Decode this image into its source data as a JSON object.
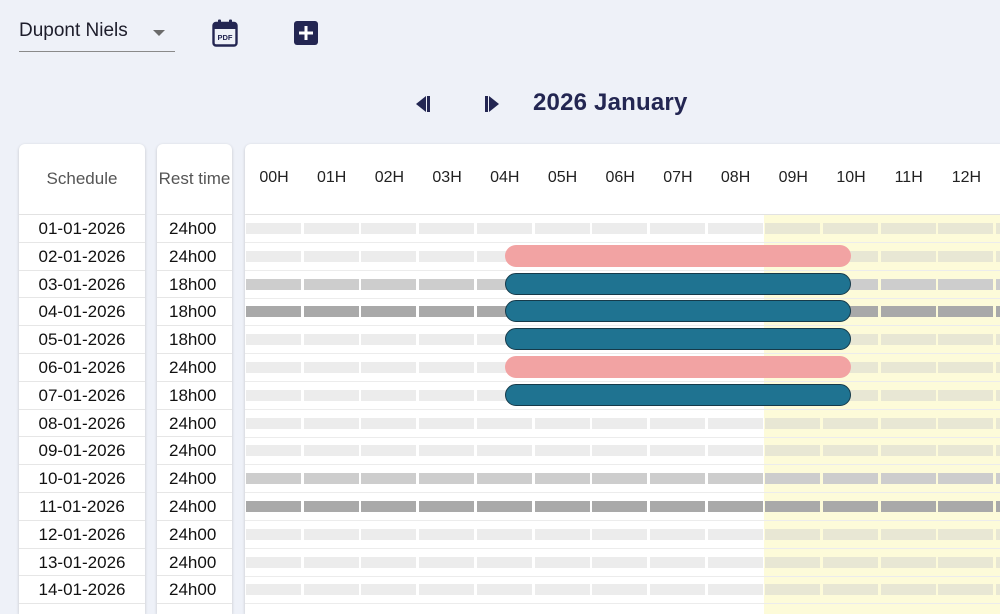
{
  "toolbar": {
    "employee": "Dupont Niels",
    "pdf_icon_text": "PDF"
  },
  "nav": {
    "month_title": "2026 January"
  },
  "columns": {
    "schedule_header": "Schedule",
    "rest_header": "Rest time"
  },
  "hours": [
    "00H",
    "01H",
    "02H",
    "03H",
    "04H",
    "05H",
    "06H",
    "07H",
    "08H",
    "09H",
    "10H",
    "11H",
    "12H"
  ],
  "rows": [
    {
      "date": "01-01-2026",
      "rest": "24h00",
      "shade": "light",
      "shift": null
    },
    {
      "date": "02-01-2026",
      "rest": "24h00",
      "shade": "light",
      "shift": "pink"
    },
    {
      "date": "03-01-2026",
      "rest": "18h00",
      "shade": "mid",
      "shift": "teal"
    },
    {
      "date": "04-01-2026",
      "rest": "18h00",
      "shade": "dark",
      "shift": "teal"
    },
    {
      "date": "05-01-2026",
      "rest": "18h00",
      "shade": "light",
      "shift": "teal"
    },
    {
      "date": "06-01-2026",
      "rest": "24h00",
      "shade": "light",
      "shift": "pink"
    },
    {
      "date": "07-01-2026",
      "rest": "18h00",
      "shade": "light",
      "shift": "teal"
    },
    {
      "date": "08-01-2026",
      "rest": "24h00",
      "shade": "light",
      "shift": null
    },
    {
      "date": "09-01-2026",
      "rest": "24h00",
      "shade": "light",
      "shift": null
    },
    {
      "date": "10-01-2026",
      "rest": "24h00",
      "shade": "mid",
      "shift": null
    },
    {
      "date": "11-01-2026",
      "rest": "24h00",
      "shade": "dark",
      "shift": null
    },
    {
      "date": "12-01-2026",
      "rest": "24h00",
      "shade": "light",
      "shift": null
    },
    {
      "date": "13-01-2026",
      "rest": "24h00",
      "shade": "light",
      "shift": null
    },
    {
      "date": "14-01-2026",
      "rest": "24h00",
      "shade": "light",
      "shift": null
    }
  ],
  "colors": {
    "accent": "#232652",
    "shift_teal": "#1f7391",
    "shift_pink": "#f2a3a3",
    "highlight_yellow": "#fdfbd9"
  },
  "icons": {
    "pdf": "calendar-pdf-icon",
    "add": "plus-square-icon",
    "prev": "skip-previous-icon",
    "next": "skip-next-icon",
    "dropdown": "caret-down-icon"
  }
}
